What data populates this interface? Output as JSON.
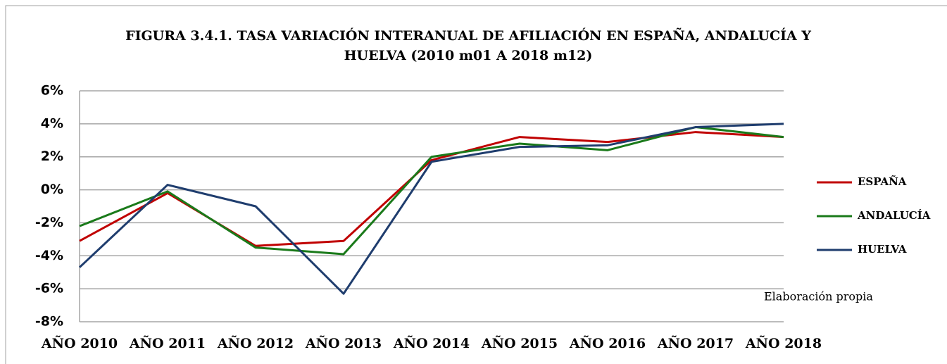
{
  "chart_data": {
    "type": "line",
    "title": [
      "FIGURA 3.4.1. TASA VARIACIÓN INTERANUAL DE AFILIACIÓN EN ESPAÑA, ANDALUCÍA Y",
      "HUELVA (2010 m01 A 2018 m12)"
    ],
    "annotation": "Elaboración propia",
    "categories": [
      "AÑO 2010",
      "AÑO 2011",
      "AÑO 2012",
      "AÑO 2013",
      "AÑO 2014",
      "AÑO 2015",
      "AÑO 2016",
      "AÑO 2017",
      "AÑO 2018"
    ],
    "series": [
      {
        "name": "ESPAÑA",
        "color": "#c00000",
        "values": [
          -3.1,
          -0.2,
          -3.4,
          -3.1,
          1.8,
          3.2,
          2.9,
          3.5,
          3.2
        ]
      },
      {
        "name": "ANDALUCÍA",
        "color": "#1a7a1a",
        "values": [
          -2.2,
          -0.1,
          -3.5,
          -3.9,
          2.0,
          2.8,
          2.4,
          3.8,
          3.2
        ]
      },
      {
        "name": "HUELVA",
        "color": "#1f3d6e",
        "values": [
          -4.7,
          0.3,
          -1.0,
          -6.3,
          1.7,
          2.6,
          2.7,
          3.8,
          4.0
        ]
      }
    ],
    "ylim": [
      -8,
      6
    ],
    "yticks": [
      {
        "value": -8,
        "label": "-8%"
      },
      {
        "value": -6,
        "label": "-6%"
      },
      {
        "value": -4,
        "label": "-4%"
      },
      {
        "value": -2,
        "label": "-2%"
      },
      {
        "value": 0,
        "label": "0%"
      },
      {
        "value": 2,
        "label": "2%"
      },
      {
        "value": 4,
        "label": "4%"
      },
      {
        "value": 6,
        "label": "6%"
      }
    ],
    "grid": true,
    "legend": "right"
  }
}
